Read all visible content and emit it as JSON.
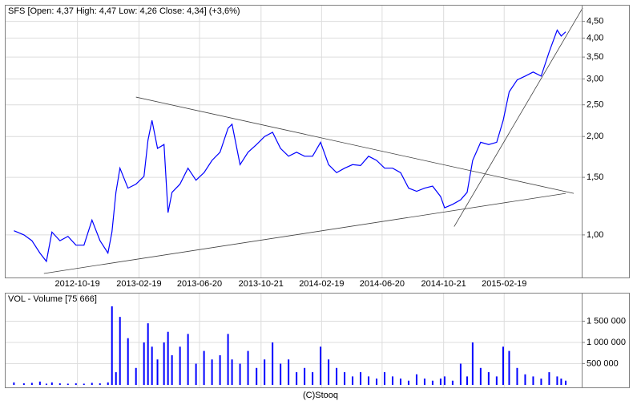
{
  "chart_data": [
    {
      "type": "line",
      "title": "SFS [Open: 4,37  High: 4,47  Low: 4,26  Close: 4,34] (+3,6%)",
      "log_scale": true,
      "grid": true,
      "y_axis_side": "right",
      "color": "#0000ff",
      "xlim": [
        "2012-05-30",
        "2015-07-24"
      ],
      "xticks": [
        "2012-10-19",
        "2013-02-19",
        "2013-06-20",
        "2013-10-21",
        "2014-02-19",
        "2014-06-20",
        "2014-10-21",
        "2015-02-19"
      ],
      "ylim": [
        0.745,
        5.0
      ],
      "yticks": [
        {
          "value": 1,
          "label": "1,00"
        },
        {
          "value": 1.5,
          "label": "1,50"
        },
        {
          "value": 2,
          "label": "2,00"
        },
        {
          "value": 2.5,
          "label": "2,50"
        },
        {
          "value": 3,
          "label": "3,00"
        },
        {
          "value": 3.5,
          "label": "3,50"
        },
        {
          "value": 4,
          "label": "4,00"
        },
        {
          "value": 4.5,
          "label": "4,50"
        }
      ],
      "x": [
        "2012-06-14",
        "2012-07-04",
        "2012-07-20",
        "2012-08-05",
        "2012-08-18",
        "2012-08-29",
        "2012-09-14",
        "2012-09-30",
        "2012-10-16",
        "2012-11-01",
        "2012-11-17",
        "2012-12-03",
        "2012-12-19",
        "2012-12-27",
        "2013-01-04",
        "2013-01-12",
        "2013-01-28",
        "2013-02-13",
        "2013-03-01",
        "2013-03-09",
        "2013-03-17",
        "2013-03-28",
        "2013-04-10",
        "2013-04-18",
        "2013-04-26",
        "2013-05-12",
        "2013-05-28",
        "2013-06-13",
        "2013-06-29",
        "2013-07-15",
        "2013-07-31",
        "2013-08-16",
        "2013-08-24",
        "2013-09-09",
        "2013-09-25",
        "2013-10-12",
        "2013-10-28",
        "2013-11-13",
        "2013-11-29",
        "2013-12-15",
        "2013-12-31",
        "2014-01-16",
        "2014-02-01",
        "2014-02-17",
        "2014-03-05",
        "2014-03-21",
        "2014-04-06",
        "2014-04-22",
        "2014-05-08",
        "2014-05-24",
        "2014-06-09",
        "2014-06-25",
        "2014-07-11",
        "2014-07-27",
        "2014-08-12",
        "2014-08-28",
        "2014-09-13",
        "2014-09-29",
        "2014-10-15",
        "2014-10-23",
        "2014-11-08",
        "2014-11-24",
        "2014-12-07",
        "2014-12-18",
        "2015-01-03",
        "2015-01-19",
        "2015-02-04",
        "2015-02-17",
        "2015-03-01",
        "2015-03-17",
        "2015-04-02",
        "2015-04-18",
        "2015-05-04",
        "2015-05-20",
        "2015-06-05",
        "2015-06-13",
        "2015-06-22"
      ],
      "values": [
        1.03,
        1.0,
        0.96,
        0.88,
        0.83,
        1.02,
        0.96,
        0.99,
        0.93,
        0.93,
        1.11,
        0.96,
        0.88,
        1.02,
        1.35,
        1.6,
        1.39,
        1.43,
        1.51,
        1.95,
        2.24,
        1.84,
        1.89,
        1.17,
        1.35,
        1.43,
        1.6,
        1.47,
        1.55,
        1.69,
        1.79,
        2.12,
        2.18,
        1.64,
        1.79,
        1.89,
        2.0,
        2.06,
        1.84,
        1.74,
        1.79,
        1.74,
        1.74,
        1.92,
        1.64,
        1.55,
        1.6,
        1.64,
        1.63,
        1.74,
        1.69,
        1.6,
        1.6,
        1.55,
        1.39,
        1.36,
        1.39,
        1.41,
        1.31,
        1.21,
        1.24,
        1.28,
        1.35,
        1.69,
        1.92,
        1.89,
        1.92,
        2.24,
        2.74,
        2.98,
        3.06,
        3.15,
        3.06,
        3.63,
        4.23,
        4.06,
        4.18
      ],
      "trend_lines": [
        {
          "color": "#404040",
          "x": [
            "2013-02-13",
            "2015-07-08"
          ],
          "values": [
            2.64,
            1.34
          ]
        },
        {
          "color": "#404040",
          "x": [
            "2012-08-13",
            "2015-06-22"
          ],
          "values": [
            0.762,
            1.34
          ]
        },
        {
          "color": "#404040",
          "x": [
            "2014-11-11",
            "2015-07-26"
          ],
          "values": [
            1.06,
            4.95
          ]
        }
      ]
    },
    {
      "type": "bar",
      "title": "VOL - Volume [75 666]",
      "grid": true,
      "color": "#0000ff",
      "ylim": [
        0,
        2150000
      ],
      "yticks": [
        {
          "value": 500000,
          "label": "500 000"
        },
        {
          "value": 1000000,
          "label": "1 000 000"
        },
        {
          "value": 1500000,
          "label": "1 500 000"
        }
      ],
      "values": [
        60000,
        40000,
        50000,
        80000,
        30000,
        60000,
        40000,
        30000,
        40000,
        30000,
        50000,
        40000,
        60000,
        1850000,
        300000,
        1600000,
        1100000,
        400000,
        1000000,
        1450000,
        900000,
        600000,
        1000000,
        1250000,
        700000,
        900000,
        1200000,
        500000,
        800000,
        600000,
        700000,
        1200000,
        600000,
        500000,
        800000,
        400000,
        600000,
        1000000,
        500000,
        600000,
        300000,
        400000,
        300000,
        900000,
        600000,
        400000,
        300000,
        200000,
        300000,
        200000,
        150000,
        300000,
        200000,
        150000,
        100000,
        250000,
        150000,
        100000,
        150000,
        200000,
        100000,
        500000,
        200000,
        1000000,
        400000,
        300000,
        200000,
        900000,
        800000,
        400000,
        250000,
        200000,
        150000,
        300000,
        200000,
        150000,
        100000
      ]
    }
  ],
  "footer": "(C)Stooq"
}
